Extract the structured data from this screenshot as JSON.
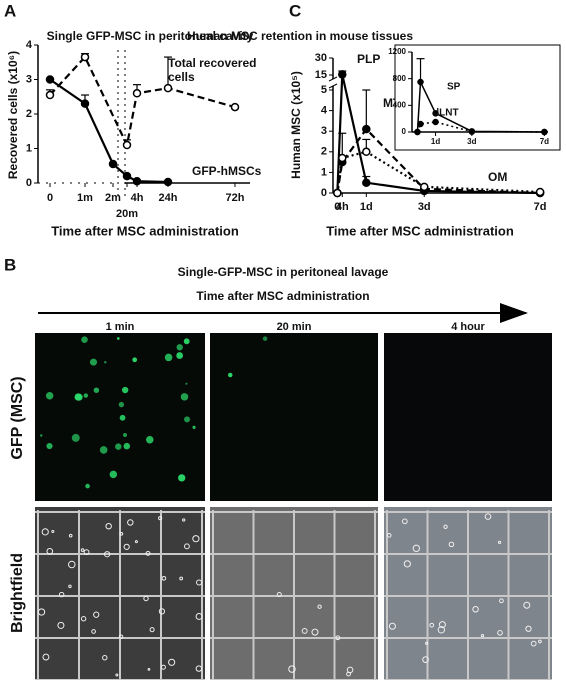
{
  "chart_data": [
    {
      "type": "line",
      "panel_label": "A",
      "title": "Single GFP-MSC in peritoneal cavity",
      "y_label": "Recovered cells (x10⁶)",
      "x_label": "Time after MSC administration",
      "categories": [
        "0",
        "1m",
        "2m",
        "20m",
        "4h",
        "24h",
        "72h"
      ],
      "ylim": [
        0,
        4
      ],
      "yticks": [
        0,
        1,
        2,
        3,
        4
      ],
      "series": [
        {
          "name": "Total recovered cells",
          "color": "#000000",
          "dash": "dashed",
          "marker": "open",
          "x": [
            "0",
            "1m",
            "20m",
            "4h",
            "24h",
            "72h"
          ],
          "values": [
            2.55,
            3.65,
            1.1,
            2.6,
            2.75,
            2.2
          ],
          "errors": [
            0.15,
            0.1,
            0.15,
            0.25,
            0.9,
            null
          ]
        },
        {
          "name": "GFP-hMSCs",
          "color": "#000000",
          "dash": "solid",
          "marker": "filled",
          "x": [
            "0",
            "1m",
            "2m",
            "20m",
            "4h",
            "24h"
          ],
          "values": [
            3.0,
            2.3,
            0.55,
            0.2,
            0.05,
            0.03
          ],
          "errors": [
            null,
            0.25,
            null,
            null,
            null,
            null
          ]
        }
      ]
    },
    {
      "type": "line",
      "panel_label": "C",
      "title": "Human MSC retention in mouse tissues",
      "y_label": "Human MSC (x10⁵)",
      "x_label": "Time after MSC administration",
      "x": [
        0,
        0.17,
        1,
        3,
        7
      ],
      "xlim": [
        -0.15,
        7.1
      ],
      "xticks": [
        {
          "value": 0,
          "label": "0"
        },
        {
          "value": 0.17,
          "label": "4h"
        },
        {
          "value": 1,
          "label": "1d"
        },
        {
          "value": 3,
          "label": "3d"
        },
        {
          "value": 7,
          "label": "7d"
        }
      ],
      "ylim": [
        0,
        30
      ],
      "y_break": [
        5,
        15
      ],
      "yticks": [
        0,
        1,
        2,
        3,
        4,
        5,
        15,
        30
      ],
      "series": [
        {
          "name": "PLP",
          "color": "#000000",
          "dash": "solid",
          "marker": "filled",
          "values": [
            0,
            15.5,
            0.5,
            0.1,
            0
          ],
          "errors": [
            null,
            3,
            0.3,
            null,
            null
          ]
        },
        {
          "name": "MT",
          "color": "#000000",
          "dash": "dashed",
          "marker": "filled",
          "values": [
            0,
            1.5,
            3.1,
            0.2,
            0
          ],
          "errors": [
            null,
            null,
            1.9,
            null,
            null
          ]
        },
        {
          "name": "OM",
          "color": "#000000",
          "dash": "dotted",
          "marker": "open",
          "values": [
            0,
            1.7,
            2.0,
            0.3,
            0.05
          ],
          "errors": [
            null,
            1.2,
            0.6,
            null,
            null
          ]
        }
      ]
    },
    {
      "type": "line",
      "inset": true,
      "x": [
        0,
        0.17,
        1,
        3,
        7
      ],
      "xlim": [
        -0.3,
        7.2
      ],
      "xticks": [
        {
          "value": 1,
          "label": "1d"
        },
        {
          "value": 3,
          "label": "3d"
        },
        {
          "value": 7,
          "label": "7d"
        }
      ],
      "ylim": [
        0,
        1200
      ],
      "yticks": [
        0,
        400,
        800,
        1200
      ],
      "series": [
        {
          "name": "SP",
          "color": "#000000",
          "dash": "solid",
          "marker": "filled",
          "values": [
            0,
            750,
            280,
            10,
            0
          ],
          "errors": [
            null,
            350,
            null,
            null,
            null
          ]
        },
        {
          "name": "dLNT",
          "color": "#000000",
          "dash": "dotted",
          "marker": "filled",
          "values": [
            0,
            120,
            150,
            5,
            0
          ],
          "errors": [
            null,
            null,
            null,
            null,
            null
          ]
        }
      ]
    }
  ],
  "panel_b": {
    "panel_label": "B",
    "title": "Single-GFP-MSC in peritoneal lavage",
    "subtitle": "Time after MSC administration",
    "columns": [
      "1 min",
      "20 min",
      "4 hour"
    ],
    "rows": [
      "GFP (MSC)",
      "Brightfield"
    ]
  }
}
